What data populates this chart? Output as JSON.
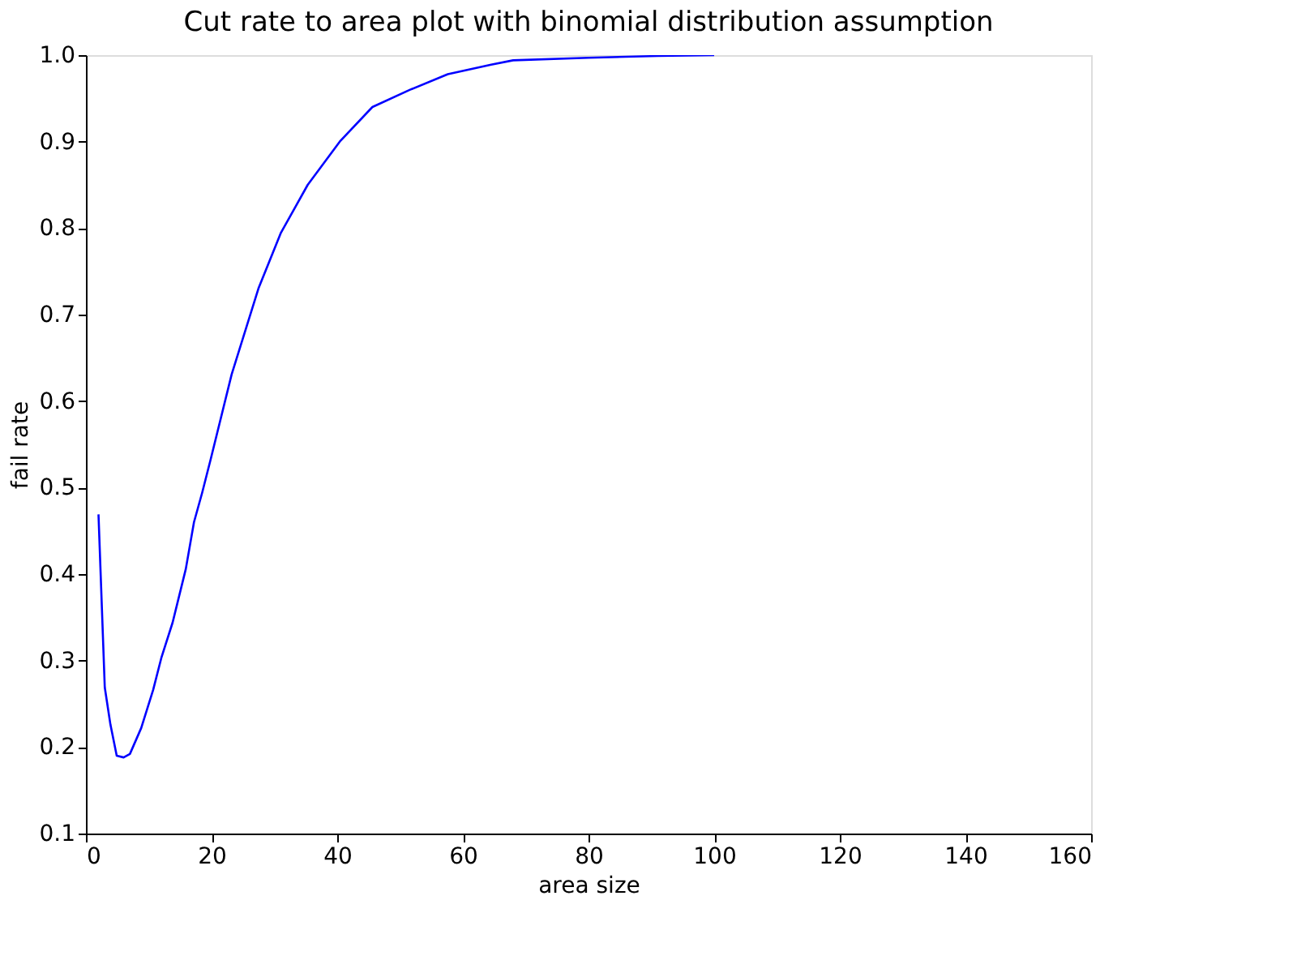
{
  "chart_data": {
    "type": "line",
    "title": "Cut rate to area plot with binomial distribution assumption",
    "xlabel": "area size",
    "ylabel": "fail rate",
    "series": [
      {
        "color": "#0000ff",
        "x": [
          2,
          3,
          3.9,
          4.9,
          6,
          7,
          8.8,
          10.7,
          12,
          13.8,
          15.9,
          17.2,
          18.5,
          19.8,
          23.2,
          27.5,
          31,
          35.3,
          40.4,
          45.6,
          51.6,
          57.6,
          64.5,
          68,
          80,
          91,
          100
        ],
        "values": [
          0.469,
          0.269,
          0.226,
          0.19,
          0.188,
          0.192,
          0.222,
          0.266,
          0.303,
          0.344,
          0.406,
          0.46,
          0.494,
          0.531,
          0.631,
          0.731,
          0.794,
          0.85,
          0.9,
          0.94,
          0.96,
          0.978,
          0.989,
          0.994,
          0.997,
          0.999,
          1.0
        ]
      }
    ],
    "xlim": [
      0,
      160
    ],
    "xticks": [
      0,
      20,
      40,
      60,
      80,
      100,
      120,
      140,
      160
    ],
    "ylim": [
      0.1,
      1.0
    ],
    "yticks": [
      {
        "value": 0.1,
        "label": "0.1"
      },
      {
        "value": 0.2,
        "label": "0.2"
      },
      {
        "value": 0.3,
        "label": "0.3"
      },
      {
        "value": 0.4,
        "label": "0.4"
      },
      {
        "value": 0.5,
        "label": "0.5"
      },
      {
        "value": 0.6,
        "label": "0.6"
      },
      {
        "value": 0.7,
        "label": "0.7"
      },
      {
        "value": 0.8,
        "label": "0.8"
      },
      {
        "value": 0.9,
        "label": "0.9"
      },
      {
        "value": 1.0,
        "label": "1.0"
      }
    ],
    "grid": false,
    "legend": false,
    "marker": "none",
    "line_style": "solid"
  }
}
